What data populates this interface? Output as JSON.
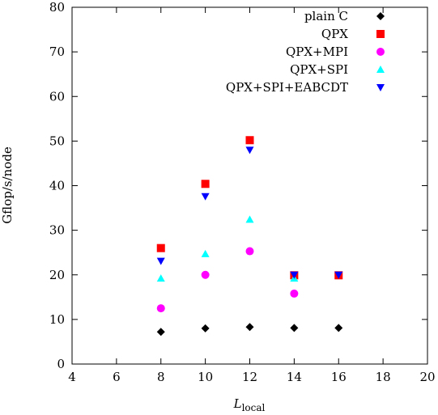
{
  "chart_data": {
    "type": "scatter",
    "xlabel": "L",
    "xlabel_sub": "local",
    "ylabel": "Gflop/s/node",
    "xlim": [
      4,
      20
    ],
    "ylim": [
      0,
      80
    ],
    "xticks": [
      4,
      6,
      8,
      10,
      12,
      14,
      16,
      18,
      20
    ],
    "yticks": [
      0,
      10,
      20,
      30,
      40,
      50,
      60,
      70,
      80
    ],
    "grid": false,
    "legend_position": "top-right",
    "series": [
      {
        "name": "plain C",
        "marker": "diamond",
        "color": "#000000",
        "x": [
          8,
          10,
          12,
          14,
          16
        ],
        "y": [
          7.2,
          8.0,
          8.3,
          8.1,
          8.1
        ]
      },
      {
        "name": "QPX",
        "marker": "square",
        "color": "#ff0000",
        "x": [
          8,
          10,
          12,
          14,
          16
        ],
        "y": [
          26.0,
          40.4,
          50.2,
          19.9,
          19.9
        ]
      },
      {
        "name": "QPX+MPI",
        "marker": "circle",
        "color": "#ff00ff",
        "x": [
          8,
          10,
          12,
          14
        ],
        "y": [
          12.5,
          20.0,
          25.3,
          15.8
        ]
      },
      {
        "name": "QPX+SPI",
        "marker": "triangle-up",
        "color": "#00ffff",
        "x": [
          8,
          10,
          12,
          14
        ],
        "y": [
          19.2,
          24.7,
          32.4,
          19.2
        ]
      },
      {
        "name": "QPX+SPI+EABCDT",
        "marker": "triangle-down",
        "color": "#0000ff",
        "x": [
          8,
          10,
          12,
          14,
          16
        ],
        "y": [
          23.1,
          37.6,
          48.0,
          20.0,
          20.0
        ]
      }
    ]
  }
}
